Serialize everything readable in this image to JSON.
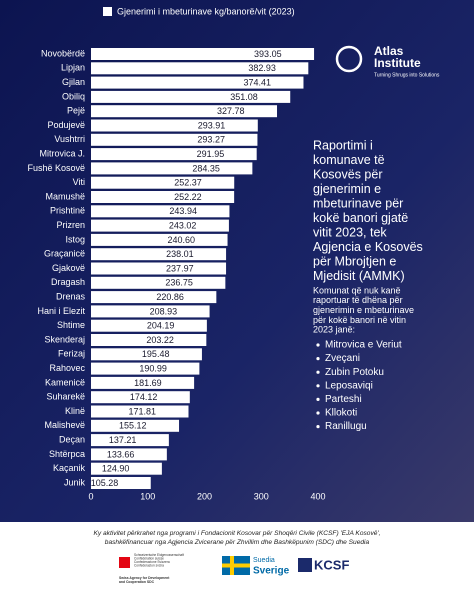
{
  "chart_data": {
    "type": "bar",
    "orientation": "horizontal",
    "legend": "Gjenerimi i mbeturinave kg/banorë/vit (2023)",
    "color": "#ffffff",
    "categories": [
      "Novobërdë",
      "Lipjan",
      "Gjilan",
      "Obiliq",
      "Pejë",
      "Podujevë",
      "Vushtrri",
      "Mitrovica J.",
      "Fushë Kosovë",
      "Viti",
      "Mamushë",
      "Prishtinë",
      "Prizren",
      "Istog",
      "Graçanicë",
      "Gjakovë",
      "Dragash",
      "Drenas",
      "Hani i Elezit",
      "Shtime",
      "Skenderaj",
      "Ferizaj",
      "Rahovec",
      "Kamenicë",
      "Suharekë",
      "Klinë",
      "Malishevë",
      "Deçan",
      "Shtërpca",
      "Kaçanik",
      "Junik"
    ],
    "values": [
      393.05,
      382.93,
      374.41,
      351.08,
      327.78,
      293.91,
      293.27,
      291.95,
      284.35,
      252.37,
      252.22,
      243.94,
      243.02,
      240.6,
      238.01,
      237.97,
      236.75,
      220.86,
      208.93,
      204.19,
      203.22,
      195.48,
      190.99,
      181.69,
      174.12,
      171.81,
      155.12,
      137.21,
      133.66,
      124.9,
      105.28
    ],
    "value_labels": [
      "393.05",
      "382.93",
      "374.41",
      "351.08",
      "327.78",
      "293.91",
      "293.27",
      "291.95",
      "284.35",
      "252.37",
      "252.22",
      "243.94",
      "243.02",
      "240.60",
      "238.01",
      "237.97",
      "236.75",
      "220.86",
      "208.93",
      "204.19",
      "203.22",
      "195.48",
      "190.99",
      "181.69",
      "174.12",
      "171.81",
      "155.12",
      "137.21",
      "133.66",
      "124.90",
      "105.28"
    ],
    "xlim": [
      0,
      400
    ],
    "xticks": [
      0,
      100,
      200,
      300,
      400
    ]
  },
  "logo": {
    "name_1": "Atlas",
    "name_2": "Institute",
    "tagline": "Turning Shrugs into Solutions"
  },
  "heading_lines": [
    "Raportimi i",
    "komunave të",
    "Kosovës për",
    "gjenerimin e",
    "mbeturinave për",
    "kokë banori gjatë",
    "vitit 2023, tek",
    "Agjencia e Kosovës",
    "për Mbrojtjen e",
    "Mjedisit (AMMK)"
  ],
  "note_lines": [
    "Komunat që nuk kanë",
    "raportuar të dhëna për",
    "gjenerimin e mbeturinave",
    "për kokë banori në vitin",
    "2023 janë:"
  ],
  "missing": [
    "Mitrovica e Veriut",
    "Zveçani",
    "Zubin Potoku",
    "Leposaviqi",
    "Parteshi",
    "Kllokoti",
    "Ranillugu"
  ],
  "footer": {
    "lines": [
      "Ky aktivitet përkrahet nga programi i Fondacionit Kosovar për Shoqëri Civile (KCSF) 'EJA Kosovë',",
      "bashkëfinancuar nga Agjencia Zvicerane për Zhvillim dhe Bashkëpunim (SDC) dhe Suedia"
    ],
    "swiss_lines": [
      "Schweizerische Eidgenossenschaft",
      "Confédération suisse",
      "Confederazione Svizzera",
      "Confederaziun svizra"
    ],
    "swiss_agency": [
      "Swiss Agency for Development",
      "and Cooperation SDC"
    ],
    "sweden_1": "Suedia",
    "sweden_2": "Sverige",
    "kcsf": "KCSF"
  }
}
